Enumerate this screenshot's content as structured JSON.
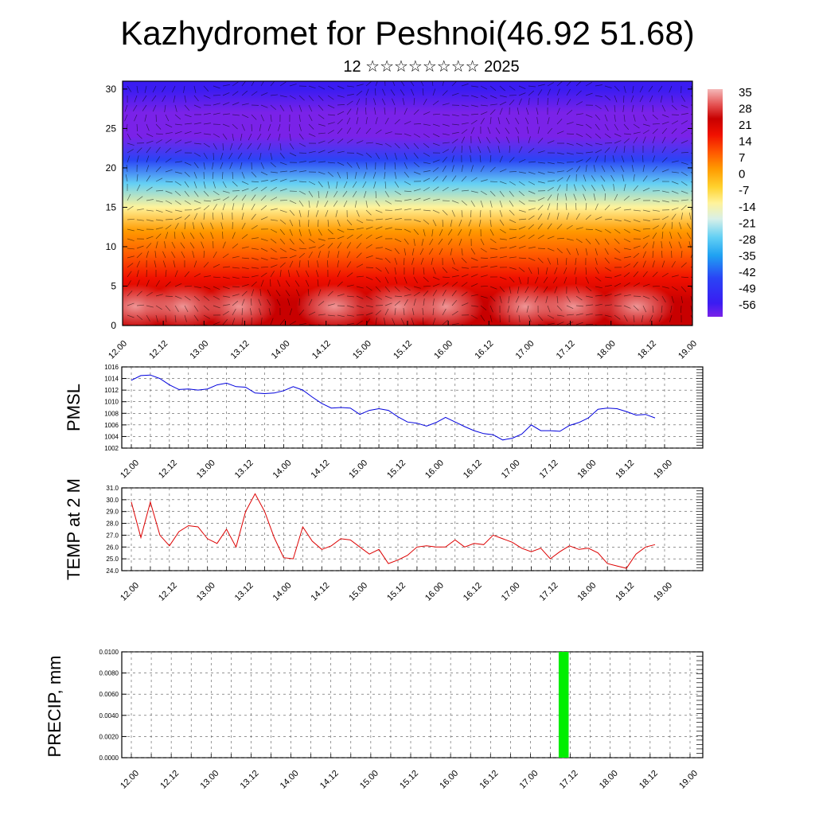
{
  "title": "Kazhydromet for Peshnoi(46.92 51.68)",
  "subtitle": "12 ☆☆☆☆☆☆☆☆ 2025",
  "chart_data": [
    {
      "type": "heatmap",
      "name": "temperature-wind-profile",
      "xlabel": "",
      "ylabel": "",
      "x_ticks": [
        "12.00",
        "12.12",
        "13.00",
        "13.12",
        "14.00",
        "14.12",
        "15.00",
        "15.12",
        "16.00",
        "16.12",
        "17.00",
        "17.12",
        "18.00",
        "18.12",
        "19.00"
      ],
      "y_ticks": [
        0,
        5,
        10,
        15,
        20,
        25,
        30
      ],
      "ylim": [
        0,
        31
      ],
      "colorbar_ticks": [
        35,
        28,
        21,
        14,
        7,
        0,
        -7,
        -14,
        -21,
        -28,
        -35,
        -42,
        -49,
        -56
      ],
      "colorbar_range": [
        -60,
        38
      ],
      "profile_levels": [
        0,
        3,
        6,
        9,
        12,
        15,
        18,
        21,
        24,
        27,
        30,
        31
      ],
      "profile_values": [
        30,
        27,
        24,
        16,
        5,
        -8,
        -22,
        -40,
        -58,
        -55,
        -52,
        -52
      ]
    },
    {
      "type": "line",
      "name": "pmsl",
      "ylabel": "PMSL",
      "line_color": "#0000dd",
      "ylim": [
        1002,
        1016
      ],
      "y_ticks": [
        1002,
        1004,
        1006,
        1008,
        1010,
        1012,
        1014,
        1016
      ],
      "x_ticks": [
        "12.00",
        "12.12",
        "13.00",
        "13.12",
        "14.00",
        "14.12",
        "15.00",
        "15.12",
        "16.00",
        "16.12",
        "17.00",
        "17.12",
        "18.00",
        "18.12",
        "19.00"
      ],
      "x_hours": [
        0,
        3,
        6,
        9,
        12,
        15,
        18,
        21,
        24,
        27,
        30,
        33,
        36,
        39,
        42,
        45,
        48,
        51,
        54,
        57,
        60,
        63,
        66,
        69,
        72,
        75,
        78,
        81,
        84,
        87,
        90,
        93,
        96,
        99,
        102,
        105,
        108,
        111,
        114,
        117,
        120,
        123,
        126,
        129,
        132,
        135,
        138,
        141,
        144,
        147,
        150,
        153,
        156,
        159,
        162,
        165
      ],
      "values": [
        1013.7,
        1014.5,
        1014.6,
        1014.0,
        1012.9,
        1012.1,
        1012.2,
        1012.0,
        1012.2,
        1012.9,
        1013.2,
        1012.6,
        1012.5,
        1011.5,
        1011.4,
        1011.5,
        1011.9,
        1012.6,
        1012.0,
        1010.8,
        1009.7,
        1008.9,
        1009.0,
        1008.9,
        1007.8,
        1008.5,
        1008.8,
        1008.5,
        1007.4,
        1006.5,
        1006.3,
        1005.8,
        1006.4,
        1007.3,
        1006.5,
        1005.7,
        1005.0,
        1004.5,
        1004.3,
        1003.4,
        1003.7,
        1004.4,
        1006.0,
        1005.0,
        1005.0,
        1004.9,
        1005.9,
        1006.4,
        1007.2,
        1008.7,
        1008.9,
        1008.8,
        1008.3,
        1007.7,
        1007.8,
        1007.2
      ]
    },
    {
      "type": "line",
      "name": "temp-2m",
      "ylabel": "TEMP at 2 M",
      "line_color": "#dd0000",
      "ylim": [
        24.0,
        31.0
      ],
      "y_ticks": [
        "24.0",
        "25.0",
        "26.0",
        "27.0",
        "28.0",
        "29.0",
        "30.0",
        "31.0"
      ],
      "x_ticks": [
        "12.00",
        "12.12",
        "13.00",
        "13.12",
        "14.00",
        "14.12",
        "15.00",
        "15.12",
        "16.00",
        "16.12",
        "17.00",
        "17.12",
        "18.00",
        "18.12",
        "19.00"
      ],
      "x_hours": [
        0,
        3,
        6,
        9,
        12,
        15,
        18,
        21,
        24,
        27,
        30,
        33,
        36,
        39,
        42,
        45,
        48,
        51,
        54,
        57,
        60,
        63,
        66,
        69,
        72,
        75,
        78,
        81,
        84,
        87,
        90,
        93,
        96,
        99,
        102,
        105,
        108,
        111,
        114,
        117,
        120,
        123,
        126,
        129,
        132,
        135,
        138,
        141,
        144,
        147,
        150,
        153,
        156,
        159,
        162,
        165
      ],
      "values": [
        29.8,
        26.8,
        29.8,
        27.0,
        26.1,
        27.3,
        27.8,
        27.7,
        26.7,
        26.3,
        27.5,
        26.0,
        29.0,
        30.5,
        29.0,
        26.8,
        25.1,
        25.0,
        27.7,
        26.5,
        25.8,
        26.1,
        26.7,
        26.6,
        26.0,
        25.4,
        25.8,
        24.6,
        24.9,
        25.3,
        26.0,
        26.1,
        26.0,
        26.0,
        26.6,
        26.0,
        26.3,
        26.2,
        27.0,
        26.7,
        26.4,
        25.9,
        25.6,
        25.9,
        25.0,
        25.6,
        26.1,
        25.8,
        25.9,
        25.5,
        24.6,
        24.4,
        24.2,
        25.4,
        26.0,
        26.2
      ]
    },
    {
      "type": "bar",
      "name": "precip",
      "ylabel": "PRECIP, mm",
      "bar_color": "#00ee00",
      "ylim": [
        0,
        0.01
      ],
      "y_ticks": [
        "0.0000",
        "0.0020",
        "0.0040",
        "0.0060",
        "0.0080",
        "0.0100"
      ],
      "x_ticks": [
        "12.00",
        "12.12",
        "13.00",
        "13.12",
        "14.00",
        "14.12",
        "15.00",
        "15.12",
        "16.00",
        "16.12",
        "17.00",
        "17.12",
        "18.00",
        "18.12",
        "19.00"
      ],
      "bars": [
        {
          "x_start_hour": 128.5,
          "x_end_hour": 131.5,
          "value": 0.01
        }
      ]
    }
  ]
}
